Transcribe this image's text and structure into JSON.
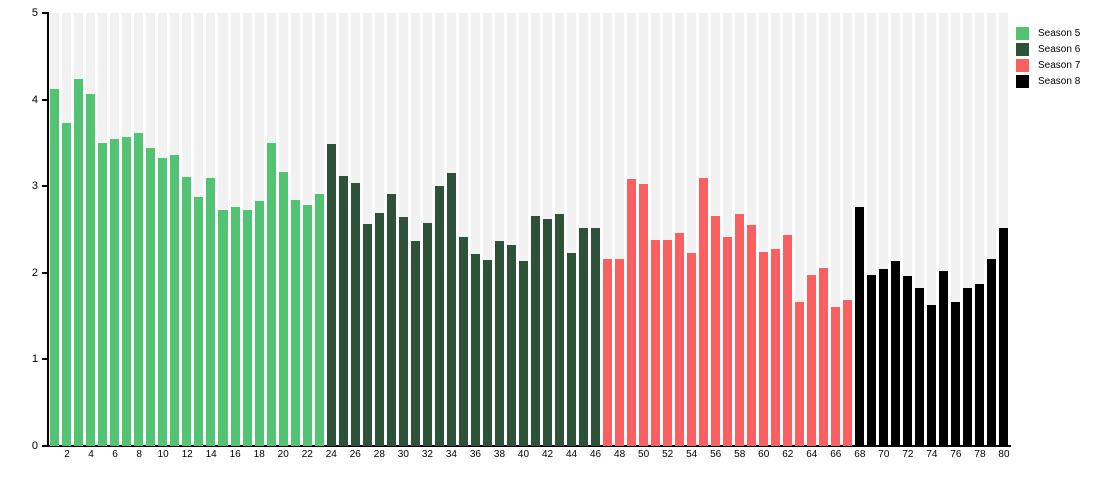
{
  "chart_data": {
    "type": "bar",
    "title": "",
    "xlabel": "",
    "ylabel": "",
    "ylim": [
      0,
      5
    ],
    "yticks": [
      0,
      1,
      2,
      3,
      4,
      5
    ],
    "xticks": [
      2,
      4,
      6,
      8,
      10,
      12,
      14,
      16,
      18,
      20,
      22,
      24,
      26,
      28,
      30,
      32,
      34,
      36,
      38,
      40,
      42,
      44,
      46,
      48,
      50,
      52,
      54,
      56,
      58,
      60,
      62,
      64,
      66,
      68,
      70,
      72,
      74,
      76,
      78,
      80
    ],
    "x_range": [
      1,
      80
    ],
    "grid": false,
    "legend_position": "top-right",
    "background_color": "#ffffff",
    "track_color": "#f1f1f1",
    "axis_color": "#000000",
    "series": [
      {
        "name": "Season 5",
        "color": "#52c373",
        "start_x": 1,
        "values": [
          4.12,
          3.73,
          4.24,
          4.07,
          3.5,
          3.55,
          3.57,
          3.61,
          3.44,
          3.33,
          3.36,
          3.11,
          2.88,
          3.09,
          2.72,
          2.76,
          2.73,
          2.83,
          3.5,
          3.16,
          2.84,
          2.78,
          2.91
        ]
      },
      {
        "name": "Season 6",
        "color": "#2e5237",
        "start_x": 24,
        "values": [
          3.49,
          3.12,
          3.04,
          2.56,
          2.69,
          2.91,
          2.64,
          2.37,
          2.57,
          3.0,
          3.15,
          2.41,
          2.22,
          2.15,
          2.37,
          2.32,
          2.14,
          2.66,
          2.62,
          2.68,
          2.23,
          2.52,
          2.52
        ]
      },
      {
        "name": "Season 7",
        "color": "#fa6060",
        "start_x": 47,
        "values": [
          2.16,
          2.16,
          3.08,
          3.02,
          2.38,
          2.38,
          2.46,
          2.23,
          3.1,
          2.66,
          2.41,
          2.68,
          2.55,
          2.24,
          2.28,
          2.44,
          1.66,
          1.97,
          2.06,
          1.61,
          1.69
        ]
      },
      {
        "name": "Season 8",
        "color": "#000000",
        "start_x": 68,
        "values": [
          2.76,
          1.98,
          2.04,
          2.14,
          1.96,
          1.83,
          1.63,
          2.02,
          1.66,
          1.82,
          1.87,
          2.16,
          2.52
        ]
      }
    ]
  }
}
